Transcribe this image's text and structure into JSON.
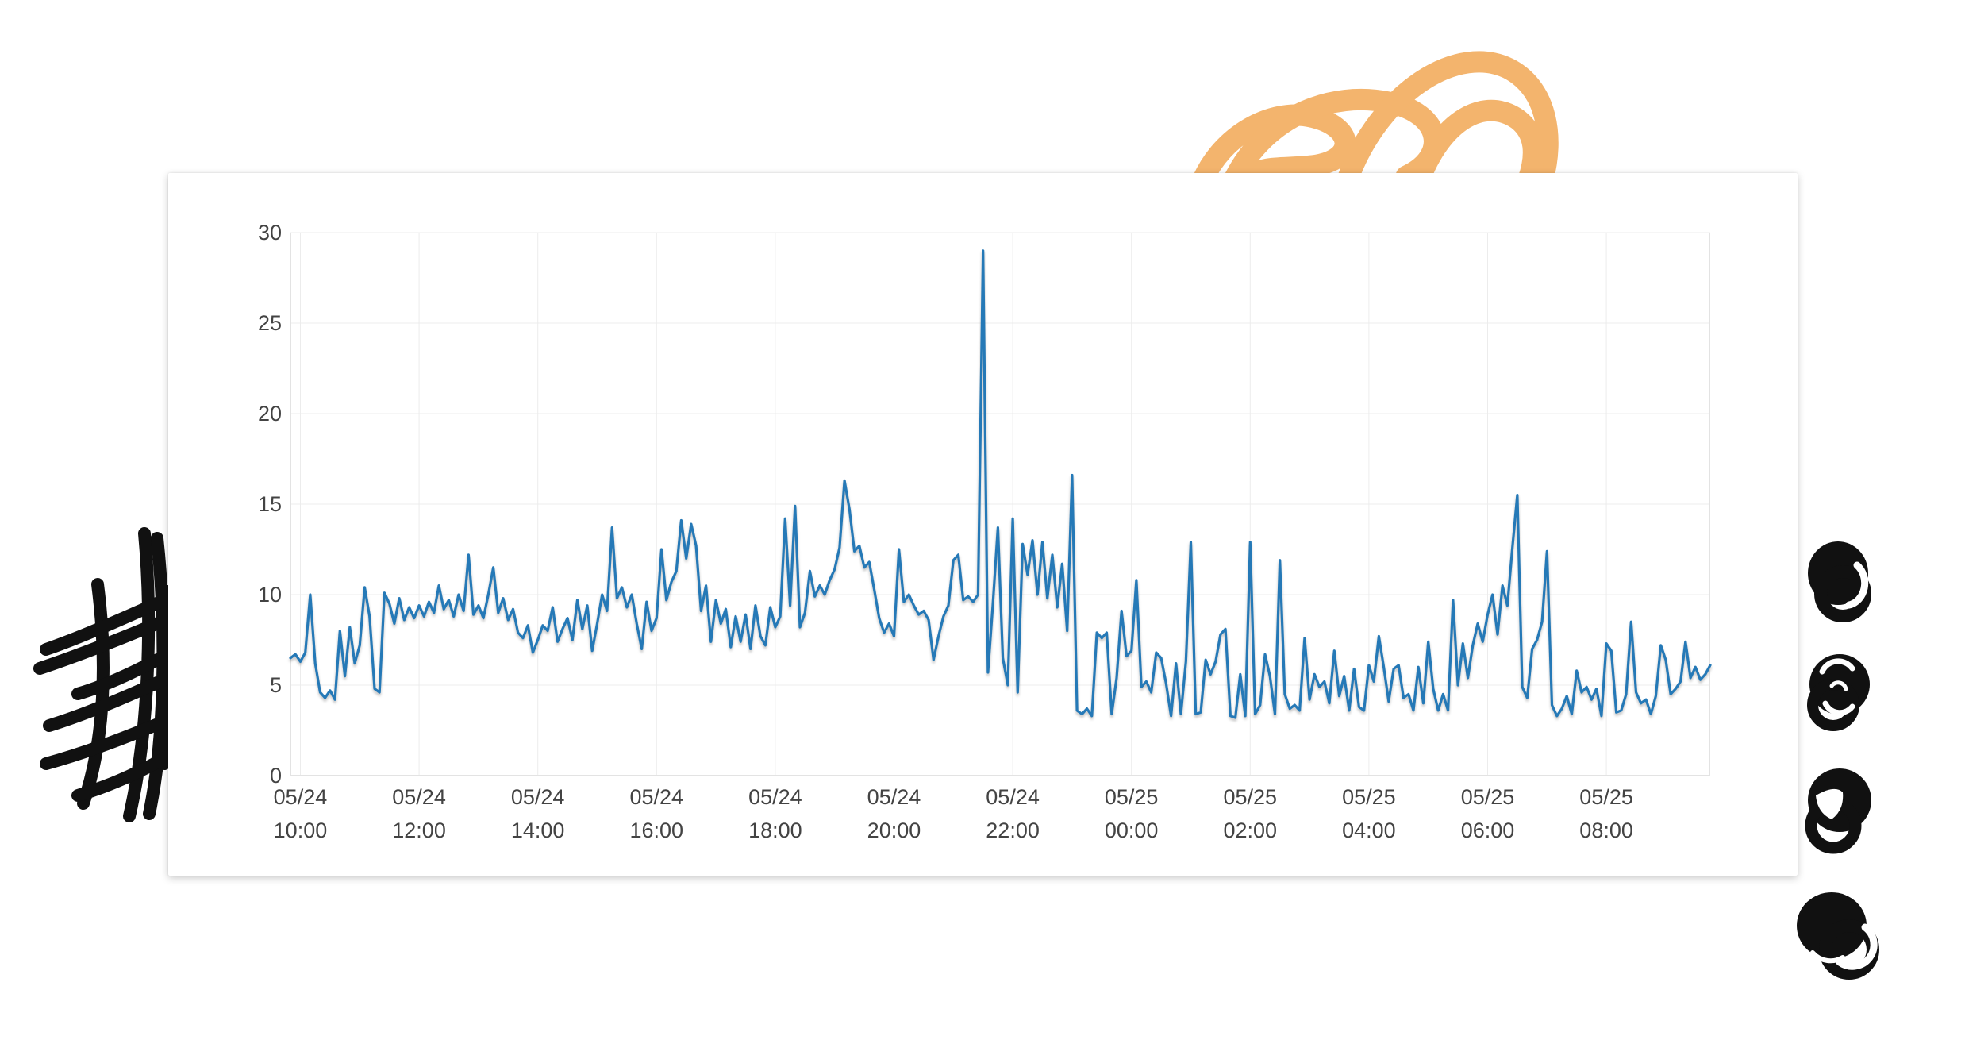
{
  "page": {
    "background": "#ffffff"
  },
  "card": {
    "background": "#ffffff",
    "title": ""
  },
  "decorations": {
    "orange_scribble_color": "#f3b46d",
    "black_scribble_color": "#111111"
  },
  "chart_data": {
    "type": "line",
    "title": "",
    "xlabel": "",
    "ylabel": "",
    "ylim": [
      0,
      30
    ],
    "y_ticks": [
      0,
      5,
      10,
      15,
      20,
      25,
      30
    ],
    "grid": true,
    "legend": false,
    "line_color": "#2579b7",
    "grid_color": "#ececec",
    "plot_border_color": "#e3e3e3",
    "axis_text_color": "#434343",
    "x_start": "05/24 09:50",
    "x_end": "05/25 09:45",
    "step_minutes": 5,
    "x_ticks": [
      {
        "date": "05/24",
        "time": "10:00",
        "index": 2
      },
      {
        "date": "05/24",
        "time": "12:00",
        "index": 26
      },
      {
        "date": "05/24",
        "time": "14:00",
        "index": 50
      },
      {
        "date": "05/24",
        "time": "16:00",
        "index": 74
      },
      {
        "date": "05/24",
        "time": "18:00",
        "index": 98
      },
      {
        "date": "05/24",
        "time": "20:00",
        "index": 122
      },
      {
        "date": "05/24",
        "time": "22:00",
        "index": 146
      },
      {
        "date": "05/25",
        "time": "00:00",
        "index": 170
      },
      {
        "date": "05/25",
        "time": "02:00",
        "index": 194
      },
      {
        "date": "05/25",
        "time": "04:00",
        "index": 218
      },
      {
        "date": "05/25",
        "time": "06:00",
        "index": 242
      },
      {
        "date": "05/25",
        "time": "08:00",
        "index": 266
      }
    ],
    "values": [
      6.5,
      6.7,
      6.3,
      6.8,
      10.0,
      6.2,
      4.6,
      4.3,
      4.7,
      4.2,
      8.0,
      5.5,
      8.2,
      6.2,
      7.2,
      10.4,
      8.8,
      4.8,
      4.6,
      10.1,
      9.5,
      8.4,
      9.8,
      8.6,
      9.3,
      8.7,
      9.4,
      8.8,
      9.6,
      9.0,
      10.5,
      9.2,
      9.7,
      8.8,
      10.0,
      9.1,
      12.2,
      8.9,
      9.4,
      8.7,
      10.0,
      11.5,
      9.0,
      9.8,
      8.6,
      9.2,
      7.9,
      7.6,
      8.3,
      6.8,
      7.5,
      8.3,
      8.0,
      9.3,
      7.4,
      8.1,
      8.7,
      7.5,
      9.7,
      8.1,
      9.4,
      6.9,
      8.4,
      10.0,
      9.1,
      13.7,
      9.8,
      10.4,
      9.3,
      10.0,
      8.4,
      7.0,
      9.6,
      8.0,
      8.7,
      12.5,
      9.7,
      10.7,
      11.3,
      14.1,
      12.0,
      13.9,
      12.7,
      9.1,
      10.5,
      7.4,
      9.7,
      8.4,
      9.2,
      7.1,
      8.8,
      7.4,
      8.9,
      7.0,
      9.4,
      7.7,
      7.2,
      9.3,
      8.2,
      8.8,
      14.2,
      9.4,
      14.9,
      8.2,
      9.0,
      11.3,
      9.9,
      10.5,
      10.0,
      10.8,
      11.4,
      12.6,
      16.3,
      14.7,
      12.4,
      12.7,
      11.5,
      11.8,
      10.3,
      8.7,
      7.9,
      8.4,
      7.7,
      12.5,
      9.6,
      10.0,
      9.4,
      8.9,
      9.1,
      8.6,
      6.4,
      7.7,
      8.8,
      9.4,
      11.9,
      12.2,
      9.7,
      9.9,
      9.6,
      10.0,
      29.0,
      5.7,
      9.5,
      13.7,
      6.5,
      5.0,
      14.2,
      4.6,
      12.8,
      11.1,
      13.0,
      10.0,
      12.9,
      9.8,
      12.2,
      9.3,
      11.7,
      8.0,
      16.6,
      3.6,
      3.4,
      3.7,
      3.3,
      7.9,
      7.6,
      7.9,
      3.4,
      5.4,
      9.1,
      6.6,
      6.9,
      10.8,
      4.9,
      5.2,
      4.6,
      6.8,
      6.5,
      5.1,
      3.3,
      6.2,
      3.4,
      6.3,
      12.9,
      3.4,
      3.5,
      6.4,
      5.6,
      6.3,
      7.8,
      8.1,
      3.3,
      3.2,
      5.6,
      3.3,
      12.9,
      3.4,
      3.9,
      6.7,
      5.5,
      3.4,
      11.9,
      4.5,
      3.7,
      3.9,
      3.6,
      7.6,
      4.2,
      5.6,
      4.9,
      5.2,
      4.0,
      6.9,
      4.4,
      5.5,
      3.6,
      5.9,
      3.8,
      3.6,
      6.1,
      5.2,
      7.7,
      6.0,
      4.1,
      5.9,
      6.1,
      4.3,
      4.5,
      3.6,
      6.0,
      4.0,
      7.4,
      4.8,
      3.6,
      4.5,
      3.6,
      9.7,
      5.0,
      7.3,
      5.4,
      7.2,
      8.4,
      7.4,
      8.9,
      10.0,
      7.8,
      10.5,
      9.4,
      12.6,
      15.5,
      4.9,
      4.3,
      7.0,
      7.5,
      8.5,
      12.4,
      3.9,
      3.3,
      3.7,
      4.4,
      3.4,
      5.8,
      4.6,
      4.9,
      4.2,
      4.8,
      3.3,
      7.3,
      6.9,
      3.5,
      3.6,
      4.5,
      8.5,
      4.6,
      4.0,
      4.2,
      3.4,
      4.4,
      7.2,
      6.4,
      4.5,
      4.8,
      5.2,
      7.4,
      5.4,
      6.0,
      5.3,
      5.6,
      6.1
    ]
  }
}
